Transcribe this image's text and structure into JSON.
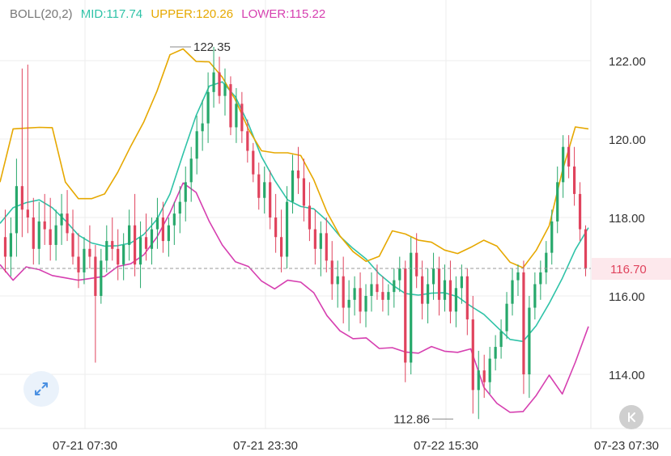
{
  "legend": {
    "indicator": "BOLL(20,2)",
    "mid_label": "MID:117.74",
    "upper_label": "UPPER:120.26",
    "lower_label": "LOWER:115.22"
  },
  "colors": {
    "up": "#27a86b",
    "down": "#e0435d",
    "mid": "#2fc3a8",
    "upper": "#e6a800",
    "lower": "#d63fb0",
    "grid": "#ececec",
    "axis_text": "#333333",
    "current_price_bg": "#fde8ec",
    "current_price_text": "#e0435d",
    "indicator_text": "#777777"
  },
  "icons": {
    "expand": "expand-arrows-icon",
    "scroll": "scroll-to-latest-icon"
  },
  "chart_data": {
    "type": "candlestick",
    "indicator": "Bollinger Bands (20, 2)",
    "y_ticks": [
      122.0,
      120.0,
      118.0,
      116.0,
      114.0
    ],
    "y_tick_labels": [
      "122.00",
      "120.00",
      "118.00",
      "116.00",
      "114.00"
    ],
    "ylim": [
      112.6,
      123.5
    ],
    "x_tick_labels": [
      "07-21 07:30",
      "07-21 23:30",
      "07-22 15:30",
      "07-23 07:30"
    ],
    "current_price": 116.7,
    "current_price_label": "116.70",
    "high_annotation": {
      "value": 122.35,
      "label": "122.35"
    },
    "low_annotation": {
      "value": 112.86,
      "label": "112.86"
    },
    "candles": [
      [
        117.5,
        118.2,
        116.6,
        117.0
      ],
      [
        117.0,
        118.0,
        116.5,
        117.6
      ],
      [
        117.6,
        119.5,
        117.0,
        118.8
      ],
      [
        118.8,
        121.8,
        117.5,
        118.2
      ],
      [
        118.2,
        121.9,
        117.6,
        118.0
      ],
      [
        118.0,
        118.5,
        116.8,
        117.2
      ],
      [
        117.2,
        118.4,
        116.8,
        117.9
      ],
      [
        117.9,
        118.6,
        117.3,
        117.7
      ],
      [
        117.7,
        118.5,
        116.9,
        117.3
      ],
      [
        117.3,
        118.2,
        116.9,
        117.8
      ],
      [
        117.8,
        118.6,
        117.3,
        118.1
      ],
      [
        118.1,
        118.7,
        117.4,
        117.6
      ],
      [
        117.6,
        118.2,
        116.8,
        117.0
      ],
      [
        117.0,
        117.6,
        116.2,
        116.6
      ],
      [
        116.6,
        117.5,
        116.3,
        117.2
      ],
      [
        117.2,
        117.8,
        116.7,
        117.0
      ],
      [
        117.0,
        117.3,
        114.3,
        116.0
      ],
      [
        116.0,
        117.2,
        115.8,
        116.9
      ],
      [
        116.9,
        117.8,
        116.6,
        117.4
      ],
      [
        117.4,
        118.0,
        116.9,
        117.2
      ],
      [
        117.2,
        117.7,
        116.4,
        116.8
      ],
      [
        116.8,
        117.6,
        116.4,
        117.3
      ],
      [
        117.3,
        118.2,
        116.9,
        117.8
      ],
      [
        117.8,
        118.6,
        116.5,
        116.8
      ],
      [
        116.8,
        117.9,
        116.2,
        117.5
      ],
      [
        117.5,
        118.1,
        116.9,
        117.2
      ],
      [
        117.2,
        118.0,
        116.8,
        117.7
      ],
      [
        117.7,
        118.5,
        117.2,
        118.0
      ],
      [
        118.0,
        118.4,
        117.1,
        117.4
      ],
      [
        117.4,
        118.0,
        117.0,
        117.8
      ],
      [
        117.8,
        118.4,
        117.3,
        118.1
      ],
      [
        118.1,
        118.8,
        117.6,
        118.4
      ],
      [
        118.4,
        119.3,
        117.9,
        118.9
      ],
      [
        118.9,
        119.8,
        118.4,
        119.5
      ],
      [
        119.5,
        120.6,
        119.1,
        120.2
      ],
      [
        120.2,
        121.0,
        119.7,
        120.4
      ],
      [
        120.4,
        121.7,
        119.9,
        121.2
      ],
      [
        121.2,
        122.35,
        120.8,
        121.7
      ],
      [
        121.7,
        122.1,
        120.9,
        121.1
      ],
      [
        121.1,
        121.8,
        120.6,
        121.4
      ],
      [
        121.4,
        121.6,
        120.1,
        120.3
      ],
      [
        120.3,
        121.3,
        119.9,
        120.9
      ],
      [
        120.9,
        121.2,
        119.9,
        120.2
      ],
      [
        120.2,
        120.5,
        119.4,
        119.7
      ],
      [
        119.7,
        119.9,
        118.9,
        119.1
      ],
      [
        119.1,
        119.4,
        118.2,
        118.5
      ],
      [
        118.5,
        119.3,
        118.1,
        118.9
      ],
      [
        118.9,
        119.2,
        117.7,
        118.0
      ],
      [
        118.0,
        118.6,
        117.1,
        117.5
      ],
      [
        117.5,
        118.2,
        116.6,
        117.0
      ],
      [
        117.0,
        118.8,
        116.7,
        118.4
      ],
      [
        118.4,
        119.6,
        118.1,
        119.2
      ],
      [
        119.2,
        119.8,
        118.6,
        119.0
      ],
      [
        119.0,
        119.5,
        117.9,
        118.3
      ],
      [
        118.3,
        118.9,
        117.4,
        117.7
      ],
      [
        117.7,
        118.2,
        116.8,
        117.2
      ],
      [
        117.2,
        117.9,
        116.5,
        117.6
      ],
      [
        117.6,
        118.0,
        116.6,
        116.9
      ],
      [
        116.9,
        117.4,
        115.9,
        116.3
      ],
      [
        116.3,
        116.9,
        115.7,
        116.5
      ],
      [
        116.5,
        117.0,
        115.3,
        115.7
      ],
      [
        115.7,
        116.4,
        115.1,
        115.9
      ],
      [
        115.9,
        116.5,
        115.5,
        116.2
      ],
      [
        116.2,
        116.6,
        115.3,
        115.6
      ],
      [
        115.6,
        116.3,
        115.2,
        116.0
      ],
      [
        116.0,
        116.6,
        115.6,
        116.3
      ],
      [
        116.3,
        116.8,
        115.9,
        116.1
      ],
      [
        116.1,
        116.5,
        115.6,
        115.9
      ],
      [
        115.9,
        116.3,
        115.5,
        116.1
      ],
      [
        116.1,
        116.7,
        115.7,
        116.4
      ],
      [
        116.4,
        117.0,
        116.1,
        116.7
      ],
      [
        116.7,
        116.9,
        113.8,
        114.3
      ],
      [
        114.3,
        117.5,
        114.0,
        117.1
      ],
      [
        117.1,
        117.6,
        116.2,
        116.5
      ],
      [
        116.5,
        116.9,
        115.4,
        115.8
      ],
      [
        115.8,
        116.7,
        115.3,
        116.3
      ],
      [
        116.3,
        117.1,
        115.9,
        116.7
      ],
      [
        116.7,
        117.0,
        115.5,
        115.9
      ],
      [
        115.9,
        116.8,
        115.6,
        116.4
      ],
      [
        116.4,
        116.9,
        115.3,
        115.6
      ],
      [
        115.6,
        116.5,
        115.2,
        116.2
      ],
      [
        116.2,
        116.8,
        115.8,
        116.5
      ],
      [
        116.5,
        116.7,
        115.0,
        115.4
      ],
      [
        115.4,
        116.0,
        113.0,
        113.6
      ],
      [
        113.6,
        114.6,
        112.86,
        114.1
      ],
      [
        114.1,
        114.5,
        113.4,
        113.8
      ],
      [
        113.8,
        114.7,
        113.5,
        114.4
      ],
      [
        114.4,
        115.0,
        114.1,
        114.7
      ],
      [
        114.7,
        115.4,
        114.4,
        115.1
      ],
      [
        115.1,
        116.1,
        114.9,
        115.8
      ],
      [
        115.8,
        116.7,
        115.5,
        116.4
      ],
      [
        116.4,
        116.8,
        116.0,
        116.6
      ],
      [
        116.6,
        116.9,
        113.5,
        114.0
      ],
      [
        114.0,
        116.0,
        113.4,
        115.7
      ],
      [
        115.7,
        116.6,
        115.4,
        116.3
      ],
      [
        116.3,
        116.9,
        115.9,
        116.6
      ],
      [
        116.6,
        117.4,
        116.3,
        117.1
      ],
      [
        117.1,
        118.2,
        116.8,
        117.9
      ],
      [
        117.9,
        119.3,
        117.6,
        118.9
      ],
      [
        118.9,
        120.1,
        118.5,
        119.8
      ],
      [
        119.8,
        120.1,
        119.0,
        119.3
      ],
      [
        119.3,
        119.8,
        118.3,
        118.6
      ],
      [
        118.6,
        118.9,
        117.4,
        117.7
      ],
      [
        117.7,
        117.8,
        116.5,
        116.7
      ]
    ],
    "series": [
      {
        "name": "MID",
        "values": [
          117.85,
          118.25,
          118.38,
          118.45,
          118.25,
          117.92,
          117.55,
          117.35,
          117.27,
          117.28,
          117.35,
          117.57,
          117.95,
          118.6,
          119.62,
          120.6,
          121.35,
          121.46,
          121.08,
          120.38,
          119.55,
          118.95,
          118.45,
          118.28,
          118.22,
          117.92,
          117.52,
          117.21,
          116.94,
          116.56,
          116.28,
          116.06,
          116.02,
          116.07,
          116.08,
          115.98,
          115.74,
          115.53,
          115.21,
          114.89,
          114.84,
          115.24,
          115.81,
          116.45,
          117.18,
          117.74
        ]
      },
      {
        "name": "UPPER",
        "values": [
          118.9,
          120.26,
          120.28,
          120.3,
          120.29,
          118.9,
          118.48,
          118.48,
          118.6,
          119.15,
          119.82,
          120.44,
          121.22,
          122.15,
          122.3,
          121.98,
          121.97,
          121.58,
          121.0,
          120.25,
          119.7,
          119.65,
          119.65,
          119.58,
          118.96,
          118.14,
          117.53,
          117.13,
          116.88,
          117.01,
          117.66,
          117.58,
          117.42,
          117.37,
          117.17,
          117.08,
          117.24,
          117.42,
          117.27,
          116.86,
          116.72,
          117.16,
          117.79,
          119.18,
          120.31,
          120.26
        ]
      },
      {
        "name": "LOWER",
        "values": [
          116.8,
          116.4,
          116.74,
          116.67,
          116.52,
          116.46,
          116.4,
          116.45,
          116.5,
          116.75,
          116.82,
          117.05,
          117.5,
          118.12,
          118.88,
          118.64,
          117.9,
          117.3,
          116.87,
          116.75,
          116.38,
          116.18,
          116.4,
          116.35,
          116.08,
          115.5,
          115.11,
          114.91,
          114.93,
          114.66,
          114.68,
          114.57,
          114.54,
          114.71,
          114.59,
          114.56,
          114.65,
          113.67,
          113.26,
          113.03,
          113.05,
          113.46,
          113.98,
          113.5,
          114.31,
          115.22
        ]
      }
    ]
  }
}
